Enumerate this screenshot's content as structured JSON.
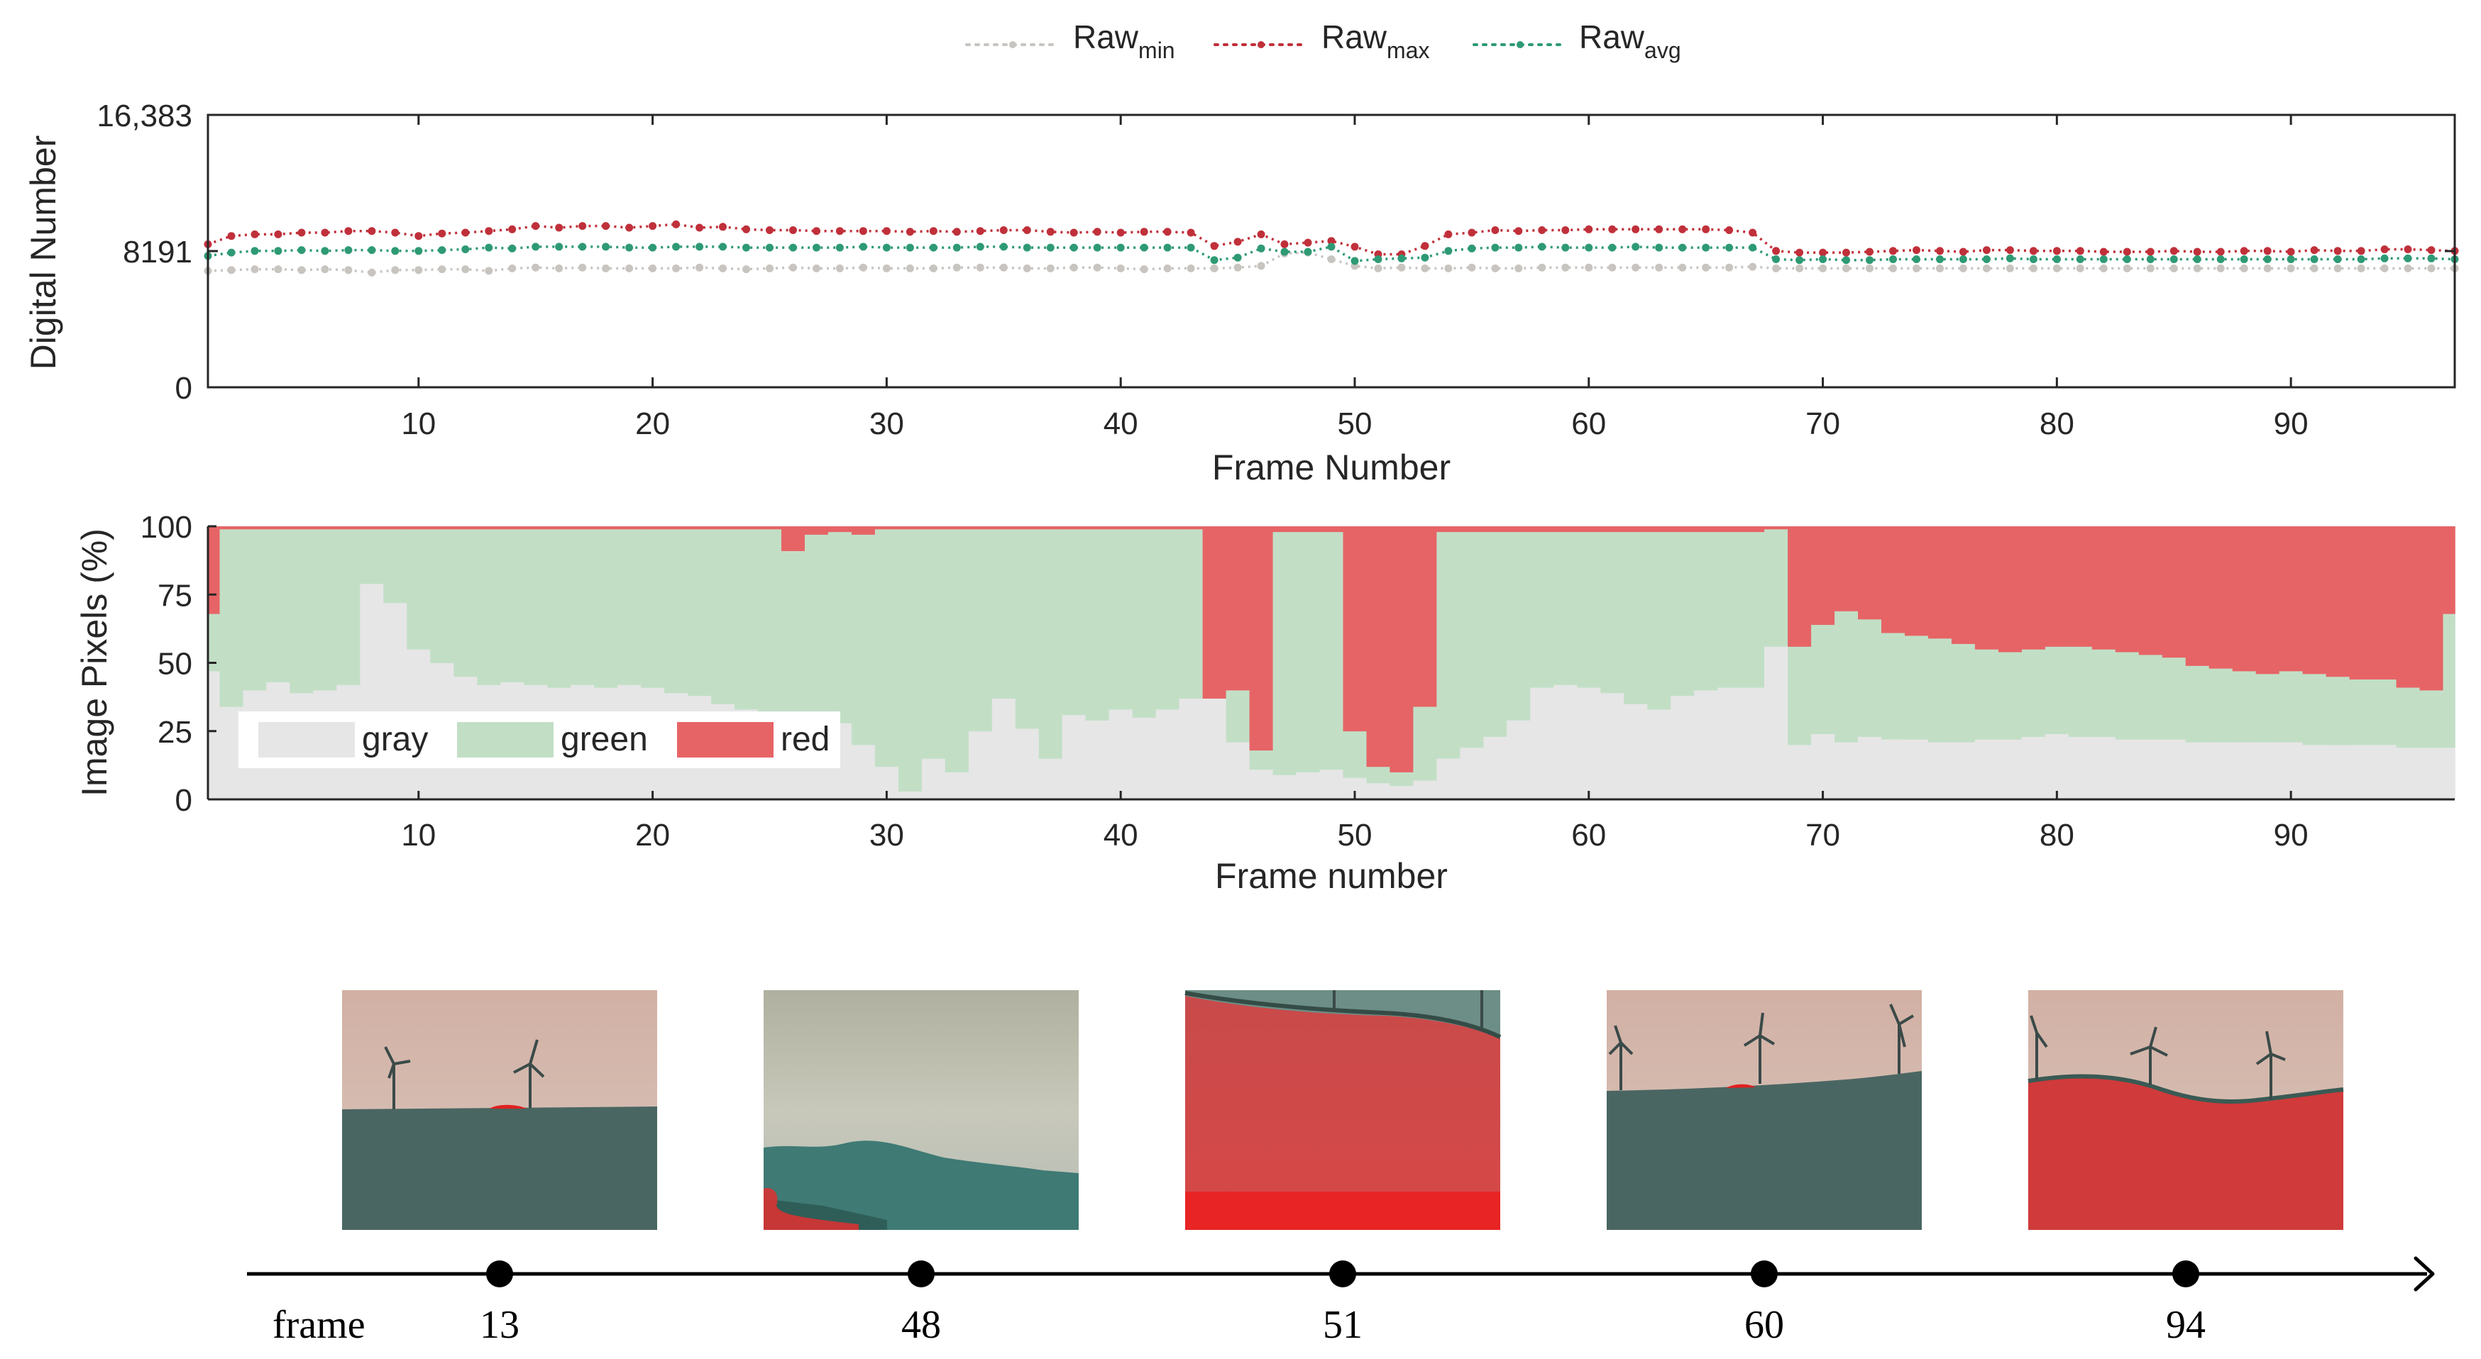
{
  "colors": {
    "raw_min": "#c8c4c0",
    "raw_max": "#c0303a",
    "raw_avg": "#2e9a74",
    "gray": "#e6e6e6",
    "green": "#c2dfc6",
    "red": "#e66466",
    "axis": "#262626"
  },
  "legend_top": {
    "items": [
      {
        "key": "raw_min",
        "base": "Raw",
        "sub": "min"
      },
      {
        "key": "raw_max",
        "base": "Raw",
        "sub": "max"
      },
      {
        "key": "raw_avg",
        "base": "Raw",
        "sub": "avg"
      }
    ]
  },
  "legend_bottom": {
    "items": [
      {
        "key": "gray",
        "label": "gray"
      },
      {
        "key": "green",
        "label": "green"
      },
      {
        "key": "red",
        "label": "red"
      }
    ]
  },
  "chart_data": [
    {
      "type": "line",
      "title": "",
      "xlabel": "Frame Number",
      "ylabel": "Digital Number",
      "xlim": [
        1,
        97
      ],
      "ylim": [
        0,
        16383
      ],
      "x_ticks": [
        10,
        20,
        30,
        40,
        50,
        60,
        70,
        80,
        90
      ],
      "y_ticks": [
        0,
        8191,
        16383
      ],
      "y_tick_labels": [
        "0",
        "8191",
        "16,383"
      ],
      "grid": false,
      "legend": "top-center",
      "x": [
        1,
        2,
        3,
        4,
        5,
        6,
        7,
        8,
        9,
        10,
        11,
        12,
        13,
        14,
        15,
        16,
        17,
        18,
        19,
        20,
        21,
        22,
        23,
        24,
        25,
        26,
        27,
        28,
        29,
        30,
        31,
        32,
        33,
        34,
        35,
        36,
        37,
        38,
        39,
        40,
        41,
        42,
        43,
        44,
        45,
        46,
        47,
        48,
        49,
        50,
        51,
        52,
        53,
        54,
        55,
        56,
        57,
        58,
        59,
        60,
        61,
        62,
        63,
        64,
        65,
        66,
        67,
        68,
        69,
        70,
        71,
        72,
        73,
        74,
        75,
        76,
        77,
        78,
        79,
        80,
        81,
        82,
        83,
        84,
        85,
        86,
        87,
        88,
        89,
        90,
        91,
        92,
        93,
        94,
        95,
        96,
        97
      ],
      "series": [
        {
          "name": "Raw_min",
          "values": [
            7000,
            7050,
            7100,
            7100,
            7050,
            7100,
            7050,
            6900,
            7050,
            7050,
            7100,
            7100,
            7000,
            7150,
            7200,
            7150,
            7200,
            7150,
            7150,
            7150,
            7150,
            7200,
            7150,
            7100,
            7150,
            7200,
            7150,
            7150,
            7200,
            7150,
            7150,
            7150,
            7200,
            7200,
            7200,
            7150,
            7150,
            7200,
            7200,
            7150,
            7100,
            7150,
            7150,
            7150,
            7200,
            7300,
            8050,
            8100,
            7700,
            7300,
            7150,
            7200,
            7150,
            7150,
            7200,
            7150,
            7150,
            7200,
            7200,
            7200,
            7200,
            7200,
            7200,
            7200,
            7200,
            7200,
            7250,
            7150,
            7150,
            7150,
            7150,
            7150,
            7150,
            7150,
            7150,
            7150,
            7150,
            7150,
            7150,
            7150,
            7150,
            7150,
            7150,
            7150,
            7150,
            7150,
            7150,
            7150,
            7150,
            7150,
            7150,
            7150,
            7150,
            7150,
            7150,
            7150,
            7150
          ]
        },
        {
          "name": "Raw_max",
          "values": [
            8600,
            9100,
            9200,
            9200,
            9300,
            9300,
            9400,
            9400,
            9300,
            9100,
            9250,
            9300,
            9400,
            9500,
            9700,
            9600,
            9700,
            9700,
            9600,
            9700,
            9800,
            9600,
            9650,
            9500,
            9450,
            9450,
            9400,
            9400,
            9400,
            9400,
            9350,
            9400,
            9350,
            9400,
            9450,
            9450,
            9350,
            9300,
            9350,
            9300,
            9350,
            9350,
            9300,
            8500,
            8750,
            9200,
            8600,
            8700,
            8800,
            8450,
            8000,
            8000,
            8500,
            9200,
            9300,
            9450,
            9400,
            9450,
            9450,
            9500,
            9500,
            9500,
            9500,
            9500,
            9500,
            9450,
            9300,
            8200,
            8100,
            8100,
            8100,
            8150,
            8200,
            8250,
            8200,
            8150,
            8250,
            8250,
            8200,
            8200,
            8200,
            8150,
            8150,
            8150,
            8200,
            8150,
            8150,
            8200,
            8200,
            8150,
            8250,
            8200,
            8200,
            8300,
            8300,
            8250,
            8200
          ]
        },
        {
          "name": "Raw_avg",
          "values": [
            7900,
            8100,
            8200,
            8200,
            8250,
            8200,
            8250,
            8250,
            8200,
            8200,
            8250,
            8300,
            8400,
            8350,
            8450,
            8450,
            8450,
            8450,
            8400,
            8400,
            8450,
            8450,
            8450,
            8400,
            8400,
            8400,
            8400,
            8400,
            8450,
            8400,
            8400,
            8400,
            8400,
            8450,
            8450,
            8400,
            8400,
            8400,
            8400,
            8400,
            8400,
            8400,
            8400,
            7650,
            7800,
            8350,
            8150,
            8150,
            8450,
            7600,
            7700,
            7750,
            7800,
            8200,
            8350,
            8400,
            8400,
            8450,
            8400,
            8400,
            8400,
            8450,
            8400,
            8400,
            8400,
            8400,
            8400,
            7700,
            7650,
            7700,
            7650,
            7650,
            7700,
            7700,
            7700,
            7700,
            7700,
            7750,
            7700,
            7700,
            7700,
            7700,
            7700,
            7700,
            7700,
            7700,
            7700,
            7700,
            7700,
            7700,
            7700,
            7700,
            7700,
            7750,
            7750,
            7750,
            7700
          ]
        }
      ]
    },
    {
      "type": "area",
      "stacked": true,
      "title": "",
      "xlabel": "Frame number",
      "ylabel": "Image Pixels (%)",
      "xlim": [
        1,
        97
      ],
      "ylim": [
        0,
        100
      ],
      "x_ticks": [
        10,
        20,
        30,
        40,
        50,
        60,
        70,
        80,
        90
      ],
      "y_ticks": [
        0,
        25,
        50,
        75,
        100
      ],
      "grid": false,
      "legend": "bottom-left",
      "x": [
        1,
        2,
        3,
        4,
        5,
        6,
        7,
        8,
        9,
        10,
        11,
        12,
        13,
        14,
        15,
        16,
        17,
        18,
        19,
        20,
        21,
        22,
        23,
        24,
        25,
        26,
        27,
        28,
        29,
        30,
        31,
        32,
        33,
        34,
        35,
        36,
        37,
        38,
        39,
        40,
        41,
        42,
        43,
        44,
        45,
        46,
        47,
        48,
        49,
        50,
        51,
        52,
        53,
        54,
        55,
        56,
        57,
        58,
        59,
        60,
        61,
        62,
        63,
        64,
        65,
        66,
        67,
        68,
        69,
        70,
        71,
        72,
        73,
        74,
        75,
        76,
        77,
        78,
        79,
        80,
        81,
        82,
        83,
        84,
        85,
        86,
        87,
        88,
        89,
        90,
        91,
        92,
        93,
        94,
        95,
        96,
        97
      ],
      "series": [
        {
          "name": "gray",
          "values": [
            47,
            34,
            40,
            43,
            39,
            40,
            42,
            79,
            72,
            55,
            50,
            45,
            42,
            43,
            42,
            41,
            42,
            41,
            42,
            41,
            39,
            38,
            35,
            33,
            30,
            27,
            22,
            28,
            20,
            12,
            3,
            15,
            10,
            25,
            37,
            26,
            15,
            31,
            29,
            33,
            30,
            33,
            37,
            37,
            21,
            11,
            9,
            10,
            11,
            8,
            6,
            5,
            7,
            15,
            19,
            23,
            29,
            41,
            42,
            41,
            39,
            35,
            33,
            38,
            40,
            41,
            41,
            56,
            20,
            24,
            21,
            23,
            22,
            22,
            21,
            21,
            22,
            22,
            23,
            24,
            23,
            23,
            22,
            22,
            22,
            21,
            21,
            21,
            21,
            21,
            20,
            20,
            20,
            20,
            19,
            19,
            19
          ]
        },
        {
          "name": "green",
          "values": [
            21,
            65,
            59,
            56,
            60,
            59,
            57,
            20,
            27,
            44,
            49,
            54,
            57,
            56,
            57,
            58,
            57,
            58,
            57,
            58,
            60,
            61,
            64,
            66,
            69,
            64,
            75,
            70,
            77,
            87,
            96,
            84,
            89,
            74,
            62,
            73,
            84,
            68,
            70,
            66,
            69,
            66,
            62,
            0,
            19,
            7,
            89,
            88,
            87,
            17,
            6,
            5,
            27,
            83,
            79,
            75,
            69,
            57,
            56,
            57,
            59,
            63,
            65,
            60,
            58,
            57,
            57,
            43,
            36,
            40,
            48,
            43,
            39,
            38,
            38,
            36,
            33,
            32,
            32,
            32,
            33,
            32,
            32,
            31,
            30,
            28,
            27,
            26,
            25,
            26,
            26,
            25,
            24,
            24,
            22,
            21,
            49
          ]
        },
        {
          "name": "red",
          "values": [
            32,
            1,
            1,
            1,
            1,
            1,
            1,
            1,
            1,
            1,
            1,
            1,
            1,
            1,
            1,
            1,
            1,
            1,
            1,
            1,
            1,
            1,
            1,
            1,
            1,
            9,
            3,
            2,
            3,
            1,
            1,
            1,
            1,
            1,
            1,
            1,
            1,
            1,
            1,
            1,
            1,
            1,
            1,
            63,
            60,
            82,
            2,
            2,
            2,
            75,
            88,
            90,
            66,
            2,
            2,
            2,
            2,
            2,
            2,
            2,
            2,
            2,
            2,
            2,
            2,
            2,
            2,
            1,
            44,
            36,
            31,
            34,
            39,
            40,
            41,
            43,
            45,
            46,
            45,
            44,
            44,
            45,
            46,
            47,
            48,
            51,
            52,
            53,
            54,
            53,
            54,
            55,
            56,
            56,
            59,
            60,
            32
          ]
        }
      ]
    }
  ],
  "timeline": {
    "label": "frame",
    "frames": [
      {
        "frame": "13",
        "scene": "horizon-turbines-dark"
      },
      {
        "frame": "48",
        "scene": "sky-clouds-ground"
      },
      {
        "frame": "51",
        "scene": "red-hill-close"
      },
      {
        "frame": "60",
        "scene": "horizon-turbines-dark"
      },
      {
        "frame": "94",
        "scene": "red-hill-turbines"
      }
    ]
  }
}
